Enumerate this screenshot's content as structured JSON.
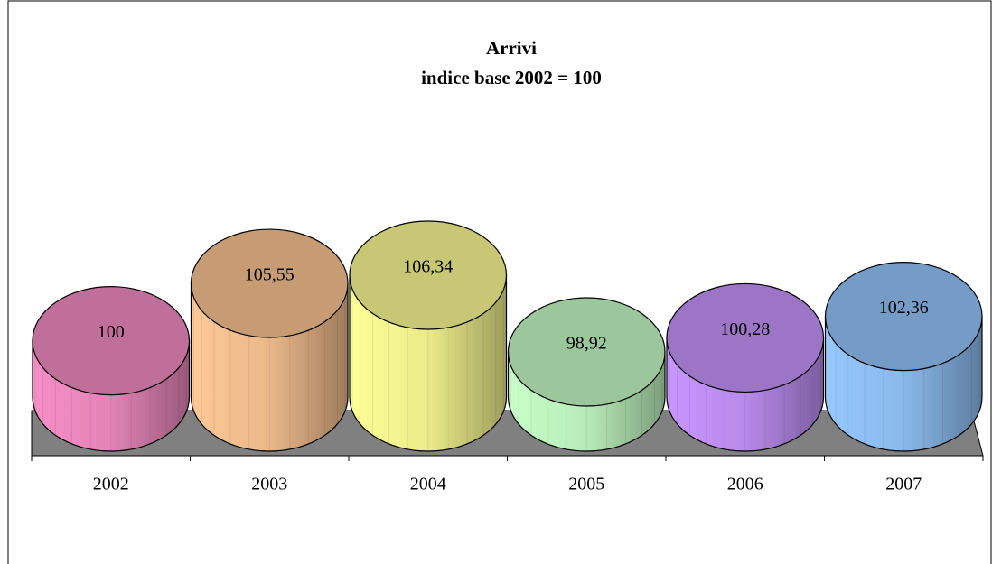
{
  "chart_data": {
    "type": "cylinder",
    "title": "Arrivi",
    "subtitle": "indice base 2002 = 100",
    "categories": [
      "2002",
      "2003",
      "2004",
      "2005",
      "2006",
      "2007"
    ],
    "values": [
      100,
      105.55,
      106.34,
      98.92,
      100.28,
      102.36
    ],
    "value_labels": [
      "100",
      "105,55",
      "106,34",
      "98,92",
      "100,28",
      "102,36"
    ],
    "colors": [
      "#f68fc6",
      "#ffc896",
      "#ffff96",
      "#c8ffc8",
      "#c896ff",
      "#96c8ff"
    ]
  }
}
